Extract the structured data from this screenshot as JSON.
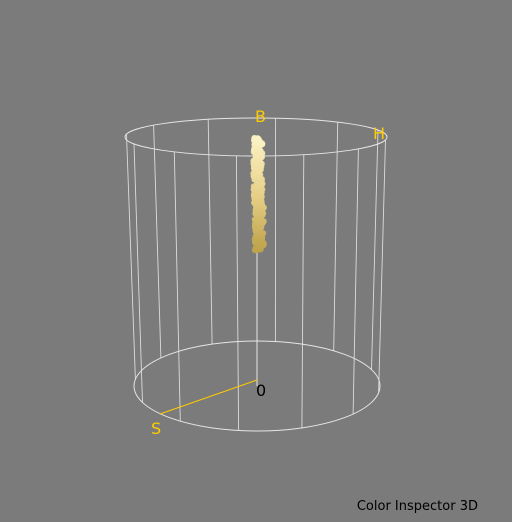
{
  "app": {
    "title": "Color Inspector 3D"
  },
  "axes": {
    "brightness_label": "B",
    "hue_label": "H",
    "saturation_label": "S",
    "origin_label": "0"
  },
  "colors": {
    "background": "#7b7b7b",
    "wireframe": "#e6e6e6",
    "axis_accent": "#ffcc00",
    "origin_label": "#000000",
    "point_light": "#fbf3c6",
    "point_mid": "#e8d28a",
    "point_dark": "#bfa34c"
  }
}
